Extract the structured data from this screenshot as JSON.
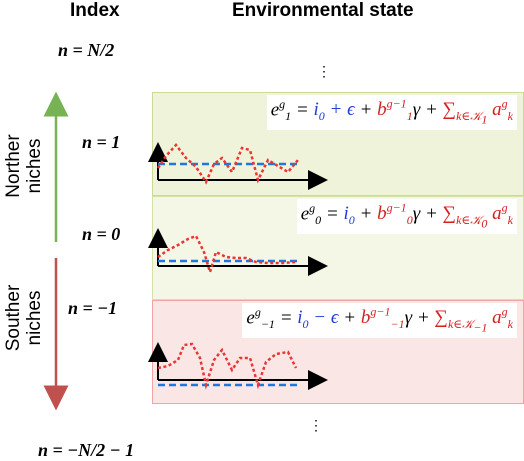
{
  "headers": {
    "index": "Index",
    "state": "Environmental state"
  },
  "index_labels": {
    "top": "n = N/2",
    "n1": "n = 1",
    "n0": "n = 0",
    "nm1": "n = −1",
    "bottom": "n = −N/2 − 1"
  },
  "side_labels": {
    "north_1": "Norther",
    "north_2": "niches",
    "south_1": "Souther",
    "south_2": "niches"
  },
  "ellipsis": "⋮",
  "colors": {
    "north_panel": "#eef3d9",
    "north_border": "#c8dc96",
    "south_panel": "#fbe6e6",
    "south_border": "#efa5a5",
    "north_arrow": "#77b255",
    "south_arrow": "#c0504d",
    "red_series": "#ee3333",
    "blue_series": "#2277dd"
  },
  "panels": [
    {
      "id": "n1",
      "eq": {
        "lhs": "e",
        "lhs_sup": "g",
        "lhs_sub": "1",
        "eq": " = ",
        "i0": "i",
        "i0_sub": "0",
        "op": " + ϵ",
        "b_plus": " + ",
        "b": "b",
        "b_sup": "g−1",
        "b_sub": "1",
        "gamma": "γ",
        "sum_plus": " + ",
        "sum": "∑",
        "sum_sub": "k∈𝒦",
        "sum_sub2": "1",
        "a": " a",
        "a_sup": "g",
        "a_sub": "k"
      }
    },
    {
      "id": "n0",
      "eq": {
        "lhs": "e",
        "lhs_sup": "g",
        "lhs_sub": "0",
        "eq": " = ",
        "i0": "i",
        "i0_sub": "0",
        "op": "",
        "b_plus": " + ",
        "b": "b",
        "b_sup": "g−1",
        "b_sub": "0",
        "gamma": "γ",
        "sum_plus": " + ",
        "sum": "∑",
        "sum_sub": "k∈𝒦",
        "sum_sub2": "0",
        "a": " a",
        "a_sup": "g",
        "a_sub": "k"
      }
    },
    {
      "id": "nm1",
      "eq": {
        "lhs": "e",
        "lhs_sup": "g",
        "lhs_sub": "−1",
        "eq": " = ",
        "i0": "i",
        "i0_sub": "0",
        "op": " − ϵ",
        "b_plus": " + ",
        "b": "b",
        "b_sup": "g−1",
        "b_sub": "−1",
        "gamma": "γ",
        "sum_plus": " + ",
        "sum": "∑",
        "sum_sub": "k∈𝒦",
        "sum_sub2": "−1",
        "a": " a",
        "a_sup": "g",
        "a_sub": "k"
      }
    }
  ]
}
